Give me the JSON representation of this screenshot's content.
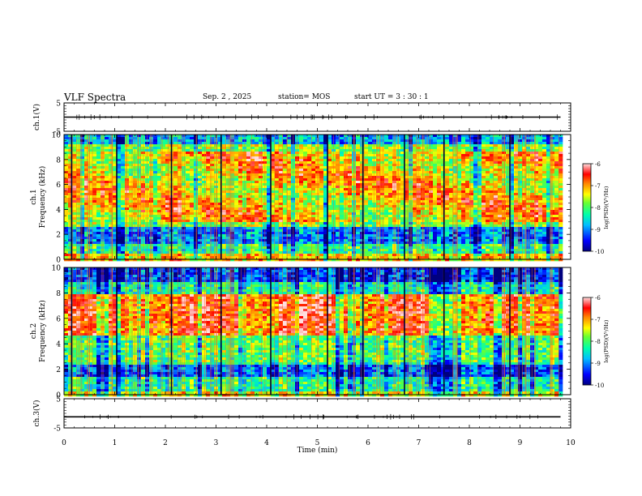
{
  "header": {
    "title": "VLF Spectra",
    "date": "Sep. 2 , 2025",
    "station": "station= MOS",
    "start": "start  UT =   3 : 30 : 1"
  },
  "chart_data": [
    {
      "type": "line",
      "panel": "ch1-voltage",
      "ylabel": "ch.1(V)",
      "ylim": [
        -5,
        5
      ],
      "ytick_labels": [
        "5",
        "-5"
      ],
      "x": [
        0,
        9.8
      ],
      "y": [
        0,
        0
      ]
    },
    {
      "type": "heatmap",
      "panel": "ch1-spectrogram",
      "ylabel": "ch.1\nFrequency (kHz)",
      "ylim": [
        0,
        10
      ],
      "ytick_labels": [
        "0",
        "2",
        "4",
        "6",
        "8",
        "10"
      ],
      "xlim": [
        0,
        10
      ],
      "data_extent_min": 9.8,
      "colorbar": {
        "label": "log(PSD)(V²/Hz)",
        "range": [
          -10,
          -6
        ],
        "tick_labels": [
          "-6",
          "-7",
          "-8",
          "-9",
          "-10"
        ]
      }
    },
    {
      "type": "heatmap",
      "panel": "ch2-spectrogram",
      "ylabel": "ch.2\nFrequency (kHz)",
      "ylim": [
        0,
        10
      ],
      "ytick_labels": [
        "0",
        "2",
        "4",
        "6",
        "8",
        "10"
      ],
      "xlim": [
        0,
        10
      ],
      "data_extent_min": 9.8,
      "colorbar": {
        "label": "log(PSD)(V²/Hz)",
        "range": [
          -10,
          -6
        ],
        "tick_labels": [
          "-6",
          "-7",
          "-8",
          "-9",
          "-10"
        ]
      }
    },
    {
      "type": "line",
      "panel": "ch3-voltage",
      "ylabel": "ch.3(V)",
      "ylim": [
        -5,
        5
      ],
      "ytick_labels": [
        "5",
        "-5"
      ],
      "x": [
        0,
        9.8
      ],
      "y": [
        -1.2,
        -1.2
      ]
    }
  ],
  "xaxis": {
    "label": "Time  (min)",
    "range": [
      0,
      10
    ],
    "tick_labels": [
      "0",
      "1",
      "2",
      "3",
      "4",
      "5",
      "6",
      "7",
      "8",
      "9",
      "10"
    ]
  },
  "colors": {
    "jet": [
      "#00007f",
      "#0000ff",
      "#007fff",
      "#00ffff",
      "#7fff7f",
      "#ffff00",
      "#ff7f00",
      "#ff0000",
      "#ffc8c8"
    ]
  }
}
